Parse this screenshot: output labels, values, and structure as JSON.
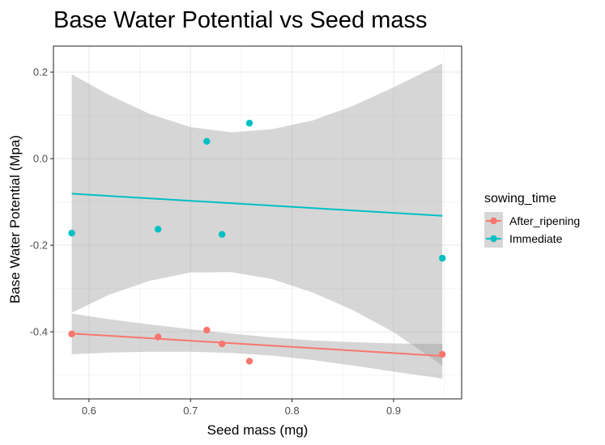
{
  "chart_data": {
    "type": "scatter",
    "title": "Base Water Potential vs Seed mass",
    "xlabel": "Seed mass (mg)",
    "ylabel": "Base Water Potential (Mpa)",
    "xlim": [
      0.565,
      0.967
    ],
    "ylim": [
      -0.555,
      0.26
    ],
    "xticks": [
      "0.6",
      "0.7",
      "0.8",
      "0.9"
    ],
    "xtick_values": [
      0.6,
      0.7,
      0.8,
      0.9
    ],
    "yticks": [
      "0.2",
      "0.0",
      "-0.2",
      "-0.4"
    ],
    "ytick_values": [
      0.2,
      0.0,
      -0.2,
      -0.4
    ],
    "grid": true,
    "legend": {
      "title": "sowing_time",
      "position": "right",
      "entries": [
        "After_ripening",
        "Immediate"
      ]
    },
    "series": [
      {
        "name": "After_ripening",
        "color": "#F8766D",
        "points": [
          {
            "x": 0.583,
            "y": -0.405
          },
          {
            "x": 0.668,
            "y": -0.412
          },
          {
            "x": 0.716,
            "y": -0.396
          },
          {
            "x": 0.731,
            "y": -0.428
          },
          {
            "x": 0.758,
            "y": -0.468
          },
          {
            "x": 0.948,
            "y": -0.452
          }
        ],
        "fit": {
          "x": [
            0.583,
            0.948
          ],
          "y": [
            -0.404,
            -0.456
          ]
        },
        "band": {
          "x": [
            0.583,
            0.62,
            0.66,
            0.7,
            0.74,
            0.78,
            0.82,
            0.86,
            0.9,
            0.948
          ],
          "lower": [
            -0.452,
            -0.448,
            -0.446,
            -0.446,
            -0.449,
            -0.455,
            -0.465,
            -0.478,
            -0.492,
            -0.508
          ],
          "upper": [
            -0.358,
            -0.371,
            -0.383,
            -0.394,
            -0.404,
            -0.413,
            -0.42,
            -0.424,
            -0.427,
            -0.428
          ]
        }
      },
      {
        "name": "Immediate",
        "color": "#00BFC4",
        "points": [
          {
            "x": 0.583,
            "y": -0.172
          },
          {
            "x": 0.668,
            "y": -0.163
          },
          {
            "x": 0.716,
            "y": 0.04
          },
          {
            "x": 0.731,
            "y": -0.175
          },
          {
            "x": 0.758,
            "y": 0.082
          },
          {
            "x": 0.948,
            "y": -0.23
          }
        ],
        "fit": {
          "x": [
            0.583,
            0.948
          ],
          "y": [
            -0.081,
            -0.132
          ]
        },
        "band": {
          "x": [
            0.583,
            0.62,
            0.66,
            0.7,
            0.74,
            0.78,
            0.82,
            0.86,
            0.9,
            0.948
          ],
          "lower": [
            -0.356,
            -0.314,
            -0.282,
            -0.263,
            -0.262,
            -0.278,
            -0.309,
            -0.35,
            -0.401,
            -0.478
          ],
          "upper": [
            0.195,
            0.147,
            0.103,
            0.073,
            0.061,
            0.068,
            0.088,
            0.122,
            0.165,
            0.22
          ]
        }
      }
    ],
    "band_color": "#999999"
  }
}
